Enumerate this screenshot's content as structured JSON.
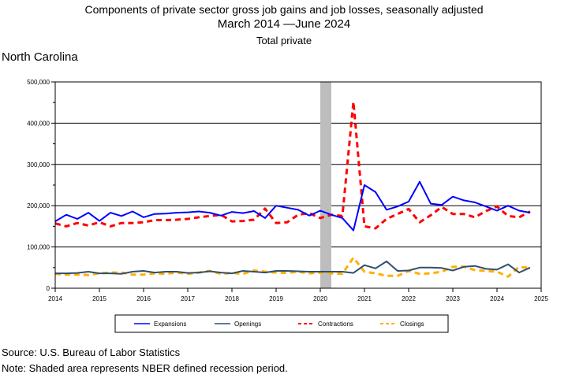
{
  "title": "Components of private sector gross job gains and job losses, seasonally adjusted",
  "subtitle": "March 2014 —June 2024",
  "subtitle2": "Total private",
  "region": "North Carolina",
  "source": "Source: U.S. Bureau of Labor Statistics",
  "note": "Note: Shaded area represents NBER defined recession period.",
  "chart_data": {
    "type": "line",
    "xlim": [
      2014,
      2025
    ],
    "ylim": [
      0,
      500000
    ],
    "yticks": [
      0,
      100000,
      200000,
      300000,
      400000,
      500000
    ],
    "ytick_labels": [
      "0",
      "100,000",
      "200,000",
      "300,000",
      "400,000",
      "500,000"
    ],
    "xticks": [
      2014,
      2015,
      2016,
      2017,
      2018,
      2019,
      2020,
      2021,
      2022,
      2023,
      2024,
      2025
    ],
    "xtick_labels": [
      "2014",
      "2015",
      "2016",
      "2017",
      "2018",
      "2019",
      "2020",
      "2021",
      "2022",
      "2023",
      "2024",
      "2025"
    ],
    "grid": "horizontal",
    "legend_position": "bottom",
    "recession": [
      2020.0,
      2020.25
    ],
    "x_start": 2014.0,
    "x_step": 0.25,
    "series": [
      {
        "name": "Expansions",
        "color": "#0000ff",
        "style": "solid",
        "width": 2,
        "values": [
          162000,
          178000,
          168000,
          183000,
          163000,
          183000,
          175000,
          186000,
          172000,
          180000,
          181000,
          183000,
          184000,
          186000,
          183000,
          176000,
          185000,
          182000,
          187000,
          170000,
          200000,
          195000,
          190000,
          176000,
          188000,
          178000,
          170000,
          140000,
          250000,
          233000,
          190000,
          198000,
          210000,
          258000,
          205000,
          202000,
          222000,
          213000,
          208000,
          198000,
          188000,
          200000,
          188000,
          183000
        ]
      },
      {
        "name": "Openings",
        "color": "#2f4f6f",
        "style": "solid",
        "width": 2,
        "values": [
          36000,
          36000,
          37000,
          40000,
          36000,
          36000,
          35000,
          40000,
          42000,
          38000,
          40000,
          40000,
          37000,
          38000,
          41000,
          38000,
          36000,
          42000,
          40000,
          38000,
          42000,
          42000,
          41000,
          40000,
          40000,
          40000,
          40000,
          37000,
          56000,
          48000,
          65000,
          42000,
          43000,
          50000,
          50000,
          49000,
          43000,
          52000,
          54000,
          47000,
          45000,
          58000,
          38000,
          50000
        ]
      },
      {
        "name": "Contractions",
        "color": "#ff0000",
        "style": "dashed",
        "width": 3,
        "values": [
          157000,
          150000,
          158000,
          152000,
          160000,
          150000,
          158000,
          158000,
          160000,
          165000,
          165000,
          166000,
          168000,
          172000,
          175000,
          178000,
          162000,
          163000,
          166000,
          193000,
          158000,
          160000,
          178000,
          182000,
          170000,
          178000,
          175000,
          452000,
          150000,
          145000,
          168000,
          180000,
          192000,
          160000,
          177000,
          197000,
          180000,
          180000,
          172000,
          187000,
          198000,
          175000,
          172000,
          186000
        ]
      },
      {
        "name": "Closings",
        "color": "#ffb000",
        "style": "dashed",
        "width": 3,
        "values": [
          35000,
          33000,
          33000,
          32000,
          36000,
          38000,
          38000,
          33000,
          33000,
          36000,
          35000,
          38000,
          35000,
          38000,
          42000,
          35000,
          37000,
          35000,
          43000,
          40000,
          38000,
          37000,
          40000,
          36000,
          38000,
          36000,
          35000,
          74000,
          40000,
          36000,
          30000,
          30000,
          42000,
          35000,
          36000,
          40000,
          52000,
          52000,
          44000,
          42000,
          40000,
          28000,
          52000,
          49000
        ]
      }
    ]
  }
}
